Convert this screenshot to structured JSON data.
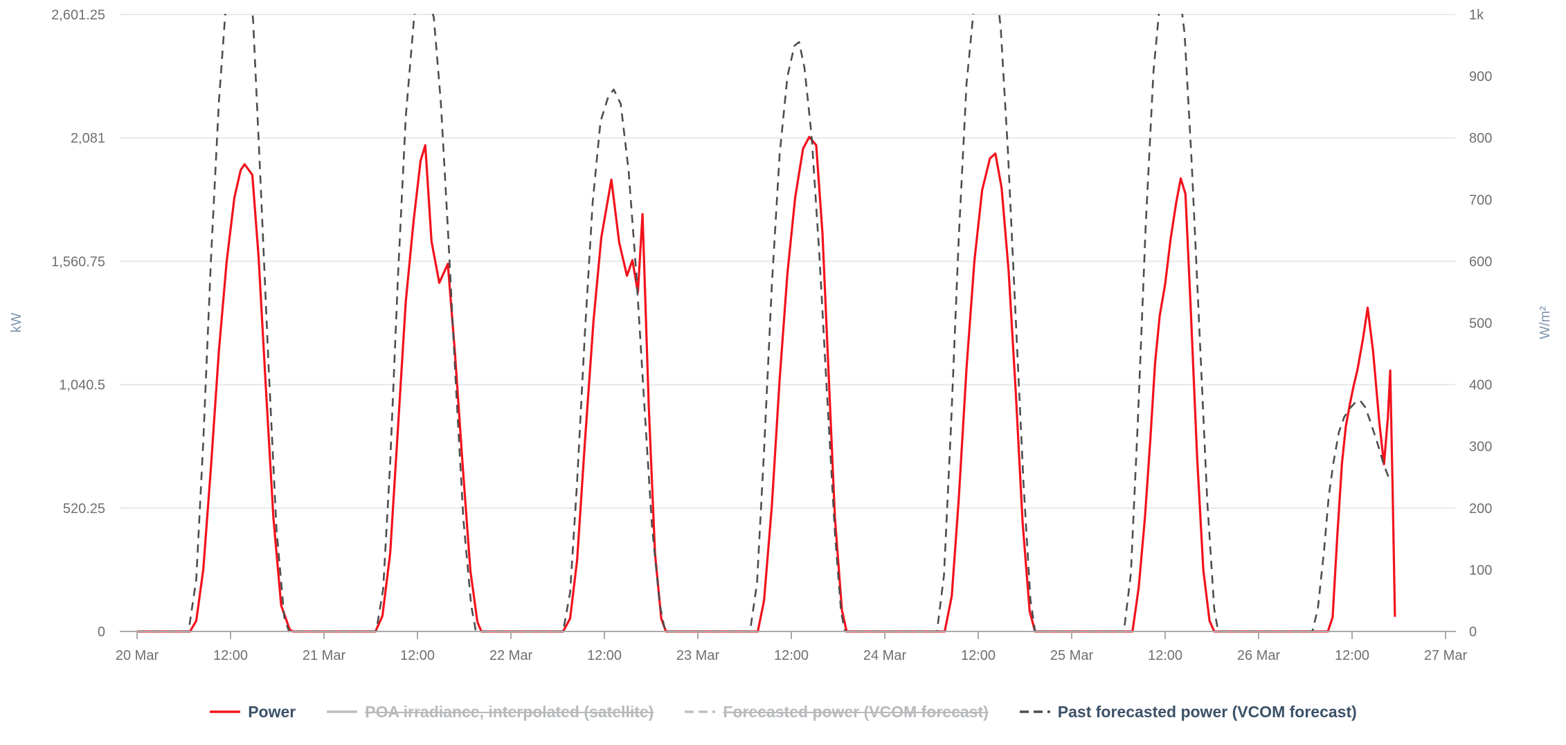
{
  "axes": {
    "left": {
      "unit": "kW",
      "tick_labels": [
        "0",
        "520.25",
        "1,040.5",
        "1,560.75",
        "2,081",
        "2,601.25"
      ],
      "tick_values": [
        0,
        520.25,
        1040.5,
        1560.75,
        2081,
        2601.25
      ],
      "max": 2601.25
    },
    "right": {
      "unit": "W/m²",
      "tick_labels": [
        "0",
        "100",
        "200",
        "300",
        "400",
        "500",
        "600",
        "700",
        "800",
        "900",
        "1k"
      ],
      "tick_values": [
        0,
        100,
        200,
        300,
        400,
        500,
        600,
        700,
        800,
        900,
        1000
      ],
      "max": 1000
    },
    "x": {
      "tick_labels": [
        "20 Mar",
        "12:00",
        "21 Mar",
        "12:00",
        "22 Mar",
        "12:00",
        "23 Mar",
        "12:00",
        "24 Mar",
        "12:00",
        "25 Mar",
        "12:00",
        "26 Mar",
        "12:00",
        "27 Mar"
      ],
      "tick_hours": [
        0,
        12,
        24,
        36,
        48,
        60,
        72,
        84,
        96,
        108,
        120,
        132,
        144,
        156,
        168
      ]
    }
  },
  "colors": {
    "power_line": "#f2121c",
    "past_forecast_line": "#4d4d4d",
    "disabled_gray": "#b7babd",
    "gridline": "#e8e8e8",
    "axis_line": "#a9a9a9",
    "tick_text": "#6f6f6f",
    "unit_text": "#7e95ac",
    "legend_text": "#3c5268"
  },
  "legend": {
    "items": [
      {
        "label": "Power",
        "enabled": true,
        "marker": "solid-line",
        "color": "#f2121c"
      },
      {
        "label": "POA irradiance, interpolated (satellite)",
        "enabled": false,
        "marker": "solid-line",
        "color": "#bfbfbf"
      },
      {
        "label": "Forecasted power (VCOM forecast)",
        "enabled": false,
        "marker": "dashed-line",
        "color": "#bfbfbf"
      },
      {
        "label": "Past forecasted power (VCOM forecast)",
        "enabled": true,
        "marker": "dashed-line",
        "color": "#4d4d4d"
      }
    ]
  },
  "chart_data": {
    "type": "line",
    "title": "",
    "x_unit": "hours since 20 Mar 00:00",
    "x_range": [
      0,
      168
    ],
    "left_axis_label": "kW",
    "left_axis_range": [
      0,
      2601.25
    ],
    "right_axis_label": "W/m²",
    "right_axis_range": [
      0,
      1000
    ],
    "grid": "horizontal gridlines at left-axis tick values; series clipped at axis top",
    "legend_position": "bottom",
    "series": [
      {
        "name": "Power",
        "axis": "left",
        "unit": "kW",
        "style": "solid",
        "color": "#f2121c",
        "points": [
          [
            0,
            0
          ],
          [
            6.8,
            0
          ],
          [
            7.6,
            45
          ],
          [
            8.5,
            260
          ],
          [
            9.5,
            700
          ],
          [
            10.5,
            1180
          ],
          [
            11.5,
            1560
          ],
          [
            12.5,
            1830
          ],
          [
            13.3,
            1945
          ],
          [
            13.8,
            1970
          ],
          [
            14.8,
            1925
          ],
          [
            15.6,
            1580
          ],
          [
            16.5,
            1050
          ],
          [
            17.5,
            480
          ],
          [
            18.5,
            110
          ],
          [
            19.6,
            8
          ],
          [
            20,
            0
          ],
          [
            30.6,
            0
          ],
          [
            31.5,
            65
          ],
          [
            32.5,
            330
          ],
          [
            33.5,
            860
          ],
          [
            34.5,
            1390
          ],
          [
            35.5,
            1730
          ],
          [
            36.4,
            1985
          ],
          [
            37,
            2050
          ],
          [
            37.8,
            1645
          ],
          [
            38.8,
            1470
          ],
          [
            39.9,
            1550
          ],
          [
            40.8,
            1180
          ],
          [
            41.8,
            700
          ],
          [
            42.8,
            255
          ],
          [
            43.7,
            40
          ],
          [
            44.2,
            0
          ],
          [
            54.7,
            0
          ],
          [
            55.6,
            55
          ],
          [
            56.5,
            300
          ],
          [
            57.5,
            800
          ],
          [
            58.6,
            1310
          ],
          [
            59.6,
            1660
          ],
          [
            60.9,
            1905
          ],
          [
            61.9,
            1640
          ],
          [
            62.9,
            1500
          ],
          [
            63.6,
            1565
          ],
          [
            64.3,
            1430
          ],
          [
            64.9,
            1760
          ],
          [
            65.7,
            950
          ],
          [
            66.5,
            330
          ],
          [
            67.3,
            55
          ],
          [
            67.9,
            0
          ],
          [
            79.7,
            0
          ],
          [
            80.5,
            130
          ],
          [
            81.5,
            530
          ],
          [
            82.5,
            1060
          ],
          [
            83.5,
            1510
          ],
          [
            84.5,
            1830
          ],
          [
            85.5,
            2035
          ],
          [
            86.3,
            2085
          ],
          [
            87.2,
            2050
          ],
          [
            88,
            1680
          ],
          [
            88.8,
            1080
          ],
          [
            89.6,
            480
          ],
          [
            90.5,
            90
          ],
          [
            91.1,
            0
          ],
          [
            103.7,
            0
          ],
          [
            104.6,
            150
          ],
          [
            105.5,
            560
          ],
          [
            106.5,
            1110
          ],
          [
            107.5,
            1560
          ],
          [
            108.5,
            1860
          ],
          [
            109.5,
            1995
          ],
          [
            110.2,
            2015
          ],
          [
            111,
            1870
          ],
          [
            111.9,
            1520
          ],
          [
            112.8,
            1020
          ],
          [
            113.7,
            460
          ],
          [
            114.6,
            85
          ],
          [
            115.3,
            0
          ],
          [
            127.8,
            0
          ],
          [
            128.6,
            185
          ],
          [
            129.4,
            480
          ],
          [
            130.1,
            810
          ],
          [
            130.7,
            1130
          ],
          [
            131.3,
            1330
          ],
          [
            132,
            1465
          ],
          [
            132.7,
            1655
          ],
          [
            133.4,
            1805
          ],
          [
            134,
            1910
          ],
          [
            134.6,
            1845
          ],
          [
            135.3,
            1350
          ],
          [
            136.1,
            740
          ],
          [
            136.9,
            260
          ],
          [
            137.7,
            45
          ],
          [
            138.3,
            0
          ],
          [
            152.9,
            0
          ],
          [
            153.5,
            60
          ],
          [
            154.1,
            400
          ],
          [
            154.7,
            710
          ],
          [
            155.2,
            865
          ],
          [
            155.7,
            955
          ],
          [
            156.2,
            1035
          ],
          [
            156.7,
            1105
          ],
          [
            157.4,
            1235
          ],
          [
            158,
            1365
          ],
          [
            158.7,
            1180
          ],
          [
            159.5,
            880
          ],
          [
            160.1,
            705
          ],
          [
            160.6,
            905
          ],
          [
            160.9,
            1100
          ],
          [
            161.2,
            610
          ],
          [
            161.5,
            62
          ]
        ]
      },
      {
        "name": "POA irradiance, interpolated (satellite)",
        "axis": "right",
        "unit": "W/m²",
        "style": "solid",
        "color": "#bfbfbf",
        "disabled": true,
        "points": []
      },
      {
        "name": "Forecasted power (VCOM forecast)",
        "axis": "left",
        "unit": "kW",
        "style": "dashed",
        "color": "#bfbfbf",
        "disabled": true,
        "points": []
      },
      {
        "name": "Past forecasted power (VCOM forecast)",
        "axis": "left",
        "unit": "kW",
        "style": "dashed",
        "color": "#4d4d4d",
        "note": "peaks on 20, 21, 24, 25 Mar exceed axis max and are clipped at top",
        "points": [
          [
            0,
            0
          ],
          [
            6.6,
            0
          ],
          [
            7.6,
            220
          ],
          [
            8.5,
            800
          ],
          [
            9.5,
            1580
          ],
          [
            10.5,
            2230
          ],
          [
            11.4,
            2640
          ],
          [
            12.3,
            2920
          ],
          [
            13.1,
            2990
          ],
          [
            14,
            2860
          ],
          [
            14.9,
            2580
          ],
          [
            15.9,
            1860
          ],
          [
            16.9,
            1110
          ],
          [
            17.9,
            430
          ],
          [
            18.9,
            60
          ],
          [
            19.5,
            0
          ],
          [
            30.7,
            0
          ],
          [
            31.6,
            180
          ],
          [
            32.5,
            710
          ],
          [
            33.5,
            1500
          ],
          [
            34.5,
            2170
          ],
          [
            35.6,
            2601
          ],
          [
            36.5,
            2670
          ],
          [
            37.2,
            2685
          ],
          [
            38.1,
            2590
          ],
          [
            39,
            2230
          ],
          [
            39.9,
            1700
          ],
          [
            40.9,
            1060
          ],
          [
            41.9,
            470
          ],
          [
            42.9,
            110
          ],
          [
            43.5,
            0
          ],
          [
            54.7,
            0
          ],
          [
            55.6,
            165
          ],
          [
            56.5,
            630
          ],
          [
            57.5,
            1260
          ],
          [
            58.5,
            1810
          ],
          [
            59.5,
            2150
          ],
          [
            60.5,
            2255
          ],
          [
            61.2,
            2285
          ],
          [
            62.1,
            2225
          ],
          [
            63.1,
            1945
          ],
          [
            64.1,
            1510
          ],
          [
            65.1,
            970
          ],
          [
            66.1,
            450
          ],
          [
            67.1,
            115
          ],
          [
            67.8,
            0
          ],
          [
            78.7,
            0
          ],
          [
            79.6,
            205
          ],
          [
            80.5,
            760
          ],
          [
            81.5,
            1460
          ],
          [
            82.5,
            2010
          ],
          [
            83.5,
            2340
          ],
          [
            84.4,
            2470
          ],
          [
            85,
            2485
          ],
          [
            85.7,
            2375
          ],
          [
            86.6,
            2090
          ],
          [
            87.6,
            1590
          ],
          [
            88.6,
            990
          ],
          [
            89.6,
            415
          ],
          [
            90.4,
            80
          ],
          [
            90.9,
            0
          ],
          [
            102.7,
            0
          ],
          [
            103.6,
            235
          ],
          [
            104.5,
            860
          ],
          [
            105.5,
            1660
          ],
          [
            106.5,
            2310
          ],
          [
            107.5,
            2650
          ],
          [
            108.4,
            2840
          ],
          [
            109.3,
            2900
          ],
          [
            110.1,
            2790
          ],
          [
            110.9,
            2540
          ],
          [
            111.8,
            2030
          ],
          [
            112.8,
            1330
          ],
          [
            113.8,
            630
          ],
          [
            114.7,
            135
          ],
          [
            115.3,
            0
          ],
          [
            126.7,
            0
          ],
          [
            127.6,
            245
          ],
          [
            128.5,
            890
          ],
          [
            129.5,
            1710
          ],
          [
            130.5,
            2360
          ],
          [
            131.3,
            2640
          ],
          [
            132.1,
            2830
          ],
          [
            132.9,
            2880
          ],
          [
            133.7,
            2740
          ],
          [
            134.5,
            2520
          ],
          [
            135.4,
            1980
          ],
          [
            136.4,
            1270
          ],
          [
            137.4,
            550
          ],
          [
            138.3,
            95
          ],
          [
            138.8,
            0
          ],
          [
            150.9,
            0
          ],
          [
            151.6,
            95
          ],
          [
            152.4,
            340
          ],
          [
            153,
            570
          ],
          [
            153.6,
            710
          ],
          [
            154.3,
            840
          ],
          [
            155,
            905
          ],
          [
            155.7,
            940
          ],
          [
            156.4,
            965
          ],
          [
            157,
            975
          ],
          [
            157.7,
            945
          ],
          [
            158.4,
            880
          ],
          [
            159.3,
            790
          ],
          [
            160.1,
            700
          ],
          [
            160.7,
            650
          ]
        ]
      }
    ]
  }
}
